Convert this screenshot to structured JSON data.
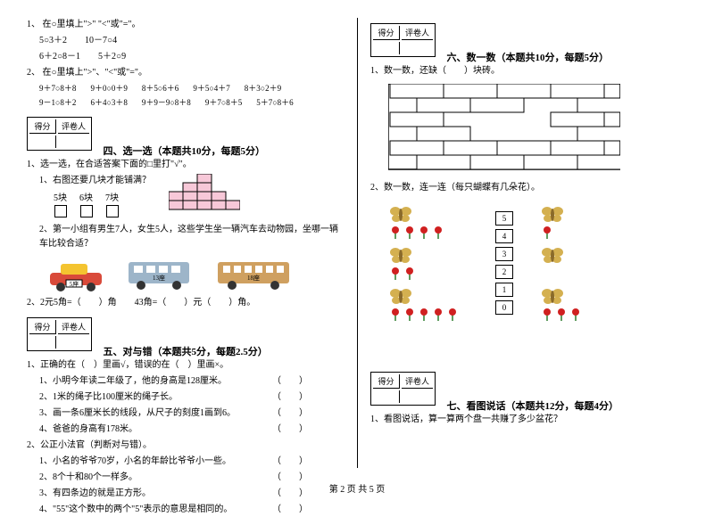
{
  "q1": {
    "num": "1、",
    "prompt": "在○里填上\">\"  \"<\"或\"=\"。",
    "lines": [
      [
        "5○3＋2",
        "10－7○4"
      ],
      [
        "6＋2○8－1",
        "5＋2○9"
      ]
    ]
  },
  "q2": {
    "num": "2、",
    "prompt": "在○里填上\">\"、\"<\"或\"=\"。",
    "lines": [
      [
        "9＋7○8＋8",
        "9＋0○0＋9",
        "8＋5○6＋6",
        "9＋5○4＋7",
        "8＋3○2＋9"
      ],
      [
        "9－1○8＋2",
        "6＋4○3＋8",
        "9＋9－9○8＋8",
        "9＋7○8＋5",
        "5＋7○8＋6"
      ]
    ]
  },
  "score_labels": {
    "a": "得分",
    "b": "评卷人"
  },
  "section4": {
    "title": "四、选一选（本题共10分，每题5分）",
    "intro": "1、选一选，在合适答案下面的□里打\"√\"。",
    "sub1": {
      "text": "1、右图还要几块才能铺满？",
      "opts": [
        "5块",
        "6块",
        "7块"
      ]
    },
    "sub2": {
      "text": "2、第一小组有男生7人，女生5人，这些学生坐一辆汽车去动物园，坐哪一辆车比较合适？",
      "labels": [
        "5座",
        "13座",
        "18座"
      ]
    },
    "q22": "2、2元5角=（　　）角　　43角=（　　）元（　　）角。"
  },
  "section5": {
    "title": "五、对与错（本题共5分，每题2.5分）",
    "intro": "1、正确的在（　）里画√，错误的在（　）里画×。",
    "items": [
      "1、小明今年读二年级了，他的身高是128厘米。",
      "2、1米的绳子比100厘米的绳子长。",
      "3、画一条6厘米长的线段，从尺子的刻度1画到6。",
      "4、爸爸的身高有178米。"
    ],
    "intro2": "2、公正小法官（判断对与错）。",
    "items2": [
      "1、小名的爷爷70岁，小名的年龄比爷爷小一些。",
      "2、8个十和80个一样多。",
      "3、有四条边的就是正方形。",
      "4、\"55\"这个数中的两个\"5\"表示的意思是相同的。"
    ]
  },
  "section6": {
    "title": "六、数一数（本题共10分，每题5分）",
    "q1": "1、数一数，还缺（　　）块砖。",
    "q2": "2、数一数，连一连（每只蝴蝶有几朵花）。",
    "nums": [
      "5",
      "4",
      "3",
      "2",
      "1",
      "0"
    ]
  },
  "section7": {
    "title": "七、看图说话（本题共12分，每题4分）",
    "q1": "1、看图说话，算一算两个盘一共赚了多少盆花？"
  },
  "footer": "第 2 页 共 5 页",
  "colors": {
    "blockgrid_fill": "#f7c8d8",
    "blockgrid_stroke": "#000000",
    "car_red": "#d94a3a",
    "car_yellow": "#f4c430",
    "bus1": "#9db5c9",
    "bus2": "#cfa060",
    "flower_red": "#d02020",
    "flower_green": "#2a7a2a",
    "butterfly_body": "#8a6a2a",
    "butterfly_wing": "#d4b050"
  },
  "brick": {
    "rows": 6,
    "cols_full": 4,
    "missing": [
      [
        1,
        2
      ],
      [
        2,
        1
      ],
      [
        2,
        2
      ],
      [
        3,
        1
      ],
      [
        3,
        2
      ]
    ]
  }
}
